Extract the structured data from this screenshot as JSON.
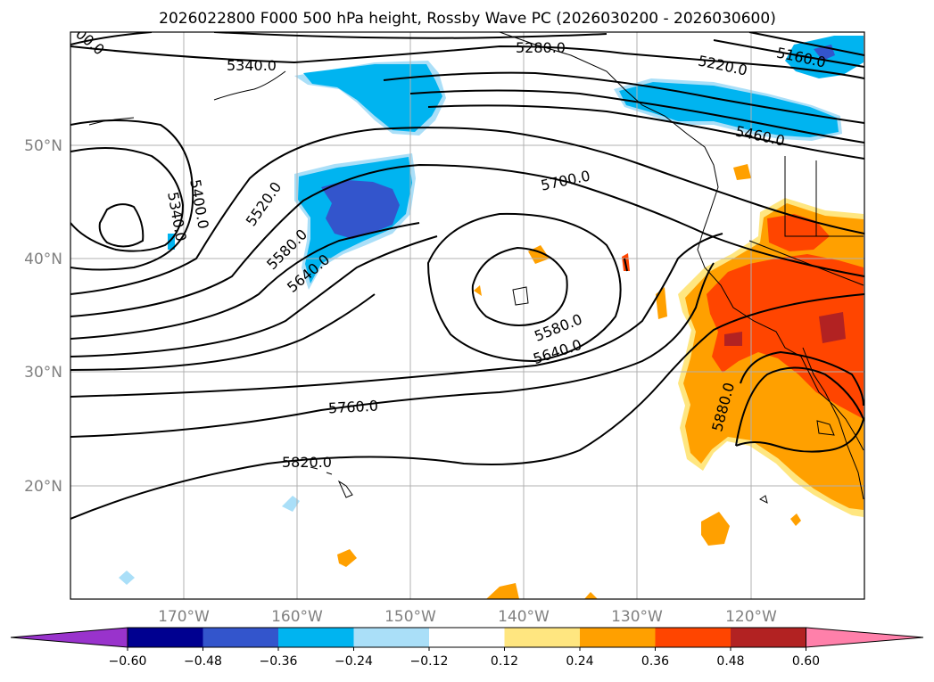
{
  "title": "2026022800 F000 500 hPa height, Rossby Wave PC (2026030200 - 2026030600)",
  "map": {
    "lon_labels": [
      "170°W",
      "160°W",
      "150°W",
      "140°W",
      "130°W",
      "120°W"
    ],
    "lat_labels": [
      "50°N",
      "40°N",
      "30°N",
      "20°N"
    ],
    "contour_labels": [
      "5340.0",
      "5280.0",
      "5220.0",
      "5160.0",
      "5460.0",
      "5400.0",
      "5340.0",
      "5520.0",
      "5580.0",
      "5640.0",
      "5700.0",
      "5580.0",
      "5640.0",
      "5760.0",
      "5820.0",
      "5880.0",
      "00.0"
    ]
  },
  "colorbar": {
    "tick_labels": [
      "−0.60",
      "−0.48",
      "−0.36",
      "−0.24",
      "−0.12",
      "0.12",
      "0.24",
      "0.36",
      "0.48",
      "0.60"
    ],
    "colors": [
      "#9933cc",
      "#000090",
      "#3355cc",
      "#00b4f0",
      "#aadff8",
      "#ffffff",
      "#ffe680",
      "#ffa000",
      "#ff4500",
      "#b22222",
      "#ff80aa"
    ]
  }
}
